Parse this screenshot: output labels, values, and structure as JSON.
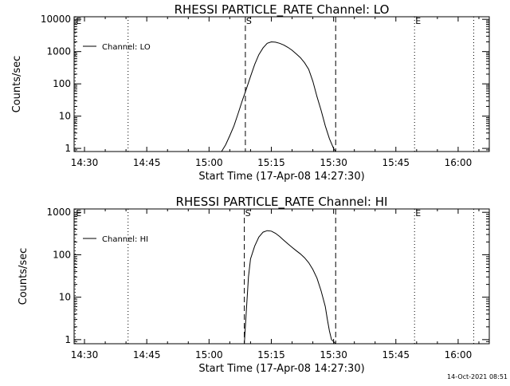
{
  "chart_data": [
    {
      "type": "line",
      "title": "RHESSI PARTICLE_RATE Channel: LO",
      "xlabel": "Start Time (17-Apr-08 14:27:30)",
      "ylabel": "Counts/sec",
      "yscale": "log",
      "xlim": [
        "14:27:30",
        "16:07:30"
      ],
      "ylim": [
        0.8,
        12000
      ],
      "x_ticks": [
        "14:30",
        "14:45",
        "15:00",
        "15:15",
        "15:30",
        "15:45",
        "16:00"
      ],
      "y_ticks": [
        "1",
        "10",
        "100",
        "1000",
        "10000"
      ],
      "legend": {
        "position": "top-left",
        "label": "Channel: LO"
      },
      "markers": [
        {
          "label": "E",
          "time": "14:27:45",
          "style": "dotted"
        },
        {
          "label": "",
          "time": "14:40:30",
          "style": "dotted"
        },
        {
          "label": "S",
          "time": "15:08:45",
          "style": "dashed"
        },
        {
          "label": "",
          "time": "15:30:30",
          "style": "dashed"
        },
        {
          "label": "E",
          "time": "15:49:30",
          "style": "dotted"
        },
        {
          "label": "",
          "time": "16:03:45",
          "style": "dotted"
        }
      ],
      "series": [
        {
          "x": [
            "15:03:00",
            "15:04:00",
            "15:05:00",
            "15:06:00",
            "15:07:00",
            "15:08:00",
            "15:09:00",
            "15:10:00",
            "15:11:00",
            "15:12:00",
            "15:13:00",
            "15:14:00",
            "15:15:00",
            "15:16:00",
            "15:17:00",
            "15:18:00",
            "15:19:00",
            "15:20:00",
            "15:21:00",
            "15:22:00",
            "15:23:00",
            "15:24:00",
            "15:25:00",
            "15:26:00",
            "15:27:00",
            "15:28:00",
            "15:29:00",
            "15:30:00",
            "15:30:30"
          ],
          "y": [
            0.8,
            1.3,
            2.5,
            5,
            12,
            30,
            70,
            170,
            400,
            800,
            1300,
            1800,
            2000,
            1950,
            1800,
            1600,
            1350,
            1100,
            850,
            650,
            450,
            280,
            120,
            40,
            15,
            5,
            2,
            1,
            0.8
          ]
        }
      ]
    },
    {
      "type": "line",
      "title": "RHESSI PARTICLE_RATE Channel: HI",
      "xlabel": "Start Time (17-Apr-08 14:27:30)",
      "ylabel": "Counts/sec",
      "yscale": "log",
      "xlim": [
        "14:27:30",
        "16:07:30"
      ],
      "ylim": [
        0.8,
        1200
      ],
      "x_ticks": [
        "14:30",
        "14:45",
        "15:00",
        "15:15",
        "15:30",
        "15:45",
        "16:00"
      ],
      "y_ticks": [
        "1",
        "10",
        "100",
        "1000"
      ],
      "legend": {
        "position": "top-left",
        "label": "Channel: HI"
      },
      "markers": [
        {
          "label": "E",
          "time": "14:27:45",
          "style": "dotted"
        },
        {
          "label": "",
          "time": "14:40:30",
          "style": "dotted"
        },
        {
          "label": "S",
          "time": "15:08:30",
          "style": "dashed"
        },
        {
          "label": "",
          "time": "15:30:30",
          "style": "dashed"
        },
        {
          "label": "E",
          "time": "15:49:30",
          "style": "dotted"
        },
        {
          "label": "",
          "time": "16:03:45",
          "style": "dotted"
        }
      ],
      "series": [
        {
          "x": [
            "15:08:30",
            "15:09:00",
            "15:09:30",
            "15:10:00",
            "15:11:00",
            "15:12:00",
            "15:13:00",
            "15:14:00",
            "15:15:00",
            "15:16:00",
            "15:17:00",
            "15:18:00",
            "15:19:00",
            "15:20:00",
            "15:21:00",
            "15:22:00",
            "15:23:00",
            "15:24:00",
            "15:25:00",
            "15:26:00",
            "15:27:00",
            "15:28:00",
            "15:28:30",
            "15:29:00",
            "15:29:30",
            "15:30:00",
            "15:30:30"
          ],
          "y": [
            0.8,
            5,
            30,
            80,
            160,
            260,
            340,
            370,
            360,
            320,
            270,
            220,
            180,
            150,
            125,
            105,
            85,
            65,
            45,
            28,
            14,
            6,
            3,
            1.6,
            1,
            0.9,
            0.8
          ]
        }
      ]
    }
  ],
  "timestamp": "14-Oct-2021 08:51"
}
